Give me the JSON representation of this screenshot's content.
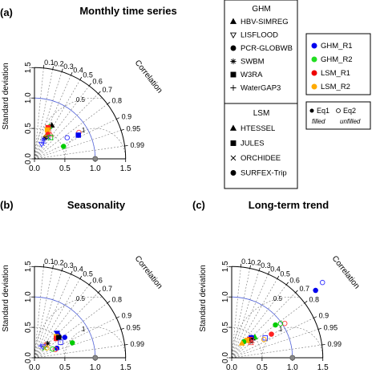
{
  "panels": [
    {
      "label": "(a)",
      "title": "Monthly time series",
      "ylabel": "Standard deviation",
      "corr_label": "Correlation",
      "chart_data": {
        "type": "scatter",
        "subtype": "taylor_diagram",
        "sd_range": [
          0,
          1.5
        ],
        "sd_ticks": [
          "0.0",
          "0.5",
          "1.0",
          "1.5"
        ],
        "corr_ticks": [
          "0.1",
          "0.2",
          "0.3",
          "0.4",
          "0.5",
          "0.6",
          "0.7",
          "0.8",
          "0.9",
          "0.95",
          "0.99"
        ],
        "rms_labels": [
          "1",
          "0.5"
        ],
        "reference_sd": 1.0,
        "points": [
          {
            "r": 0.86,
            "sd": 0.85,
            "color": "#ff4444",
            "shape": "circle",
            "filled": false
          },
          {
            "r": 0.84,
            "sd": 0.64,
            "color": "#3333ff",
            "shape": "circle",
            "filled": false
          },
          {
            "r": 0.88,
            "sd": 0.82,
            "color": "#0000ee",
            "shape": "square",
            "filled": true
          },
          {
            "r": 0.92,
            "sd": 0.52,
            "color": "#00cc00",
            "shape": "circle",
            "filled": true
          },
          {
            "r": 0.46,
            "sd": 0.62,
            "color": "#000000",
            "shape": "triangle",
            "filled": true
          },
          {
            "r": 0.42,
            "sd": 0.58,
            "color": "#00cc00",
            "shape": "triangle",
            "filled": true
          },
          {
            "r": 0.4,
            "sd": 0.56,
            "color": "#ff2222",
            "shape": "square",
            "filled": true
          },
          {
            "r": 0.41,
            "sd": 0.52,
            "color": "#ffaa00",
            "shape": "square",
            "filled": true
          },
          {
            "r": 0.48,
            "sd": 0.46,
            "color": "#ff2222",
            "shape": "circle",
            "filled": true
          },
          {
            "r": 0.46,
            "sd": 0.4,
            "color": "#ffaa00",
            "shape": "circle",
            "filled": true
          },
          {
            "r": 0.55,
            "sd": 0.42,
            "color": "#0000ee",
            "shape": "cross",
            "filled": false
          },
          {
            "r": 0.45,
            "sd": 0.38,
            "color": "#000000",
            "shape": "star",
            "filled": false
          },
          {
            "r": 0.42,
            "sd": 0.35,
            "color": "#3333ff",
            "shape": "star",
            "filled": false
          },
          {
            "r": 0.5,
            "sd": 0.3,
            "color": "#3333ff",
            "shape": "plus",
            "filled": false
          },
          {
            "r": 0.43,
            "sd": 0.27,
            "color": "#3333ff",
            "shape": "triangle-down",
            "filled": false
          },
          {
            "r": 0.56,
            "sd": 0.48,
            "color": "#ff4444",
            "shape": "triangle",
            "filled": false
          },
          {
            "r": 0.6,
            "sd": 0.44,
            "color": "#00cc00",
            "shape": "square",
            "filled": false
          }
        ]
      }
    },
    {
      "label": "(b)",
      "title": "Seasonality",
      "ylabel": "Standard deviation",
      "corr_label": "Correlation",
      "chart_data": {
        "type": "scatter",
        "subtype": "taylor_diagram",
        "sd_range": [
          0,
          1.5
        ],
        "sd_ticks": [
          "0.0",
          "0.5",
          "1.0",
          "1.5"
        ],
        "corr_ticks": [
          "0.1",
          "0.2",
          "0.3",
          "0.4",
          "0.5",
          "0.6",
          "0.7",
          "0.8",
          "0.9",
          "0.95",
          "0.99"
        ],
        "rms_labels": [
          "1",
          "0.5"
        ],
        "reference_sd": 1.0,
        "points": [
          {
            "r": 0.93,
            "sd": 0.67,
            "color": "#00cc00",
            "shape": "circle",
            "filled": true
          },
          {
            "r": 0.83,
            "sd": 0.6,
            "color": "#0000ee",
            "shape": "circle",
            "filled": true
          },
          {
            "r": 0.74,
            "sd": 0.55,
            "color": "#0000ee",
            "shape": "triangle",
            "filled": true
          },
          {
            "r": 0.67,
            "sd": 0.55,
            "color": "#0000ee",
            "shape": "triangle-down",
            "filled": true
          },
          {
            "r": 0.72,
            "sd": 0.5,
            "color": "#ffaa00",
            "shape": "square",
            "filled": true
          },
          {
            "r": 0.75,
            "sd": 0.48,
            "color": "#ff2222",
            "shape": "square",
            "filled": true
          },
          {
            "r": 0.77,
            "sd": 0.52,
            "color": "#000000",
            "shape": "square",
            "filled": true
          },
          {
            "r": 0.86,
            "sd": 0.5,
            "color": "#3333ff",
            "shape": "square",
            "filled": false
          },
          {
            "r": 0.92,
            "sd": 0.4,
            "color": "#0000ee",
            "shape": "circle",
            "filled": true
          },
          {
            "r": 0.93,
            "sd": 0.37,
            "color": "#ff4444",
            "shape": "circle",
            "filled": false
          },
          {
            "r": 0.9,
            "sd": 0.33,
            "color": "#00cc00",
            "shape": "circle",
            "filled": false
          },
          {
            "r": 0.68,
            "sd": 0.32,
            "color": "#000000",
            "shape": "star",
            "filled": false
          },
          {
            "r": 0.64,
            "sd": 0.27,
            "color": "#ff4444",
            "shape": "triangle",
            "filled": false
          },
          {
            "r": 0.6,
            "sd": 0.23,
            "color": "#3333ff",
            "shape": "triangle-down",
            "filled": false
          },
          {
            "r": 0.48,
            "sd": 0.22,
            "color": "#3333ff",
            "shape": "plus",
            "filled": false
          },
          {
            "r": 0.74,
            "sd": 0.23,
            "color": "#00cc00",
            "shape": "cross",
            "filled": false
          },
          {
            "r": 0.78,
            "sd": 0.26,
            "color": "#ffaa00",
            "shape": "circle",
            "filled": false
          }
        ]
      }
    },
    {
      "label": "(c)",
      "title": "Long-term trend",
      "ylabel": "Standard deviation",
      "corr_label": "Correlation",
      "chart_data": {
        "type": "scatter",
        "subtype": "taylor_diagram",
        "sd_range": [
          0,
          1.5
        ],
        "sd_ticks": [
          "0.0",
          "0.5",
          "1.0",
          "1.5"
        ],
        "corr_ticks": [
          "0.1",
          "0.2",
          "0.3",
          "0.4",
          "0.5",
          "0.6",
          "0.7",
          "0.8",
          "0.9",
          "0.95",
          "0.99"
        ],
        "rms_labels": [
          "1",
          "0.5"
        ],
        "reference_sd": 1.0,
        "points": [
          {
            "r": 0.77,
            "sd": 1.94,
            "color": "#3333ff",
            "shape": "circle",
            "filled": false
          },
          {
            "r": 0.78,
            "sd": 1.77,
            "color": "#0000ee",
            "shape": "circle",
            "filled": true
          },
          {
            "r": 0.84,
            "sd": 1.04,
            "color": "#ff4444",
            "shape": "circle",
            "filled": false
          },
          {
            "r": 0.82,
            "sd": 0.98,
            "color": "#00cc00",
            "shape": "circle",
            "filled": false
          },
          {
            "r": 0.8,
            "sd": 0.9,
            "color": "#00cc00",
            "shape": "circle",
            "filled": true
          },
          {
            "r": 0.86,
            "sd": 0.76,
            "color": "#ff2222",
            "shape": "circle",
            "filled": true
          },
          {
            "r": 0.86,
            "sd": 0.64,
            "color": "#3333ff",
            "shape": "square",
            "filled": false
          },
          {
            "r": 0.87,
            "sd": 0.61,
            "color": "#ffaa00",
            "shape": "circle",
            "filled": false
          },
          {
            "r": 0.73,
            "sd": 0.47,
            "color": "#000000",
            "shape": "triangle",
            "filled": true
          },
          {
            "r": 0.75,
            "sd": 0.51,
            "color": "#00cc00",
            "shape": "triangle",
            "filled": true
          },
          {
            "r": 0.7,
            "sd": 0.46,
            "color": "#0000ee",
            "shape": "square",
            "filled": true
          },
          {
            "r": 0.7,
            "sd": 0.43,
            "color": "#ff2222",
            "shape": "triangle-down",
            "filled": true
          },
          {
            "r": 0.72,
            "sd": 0.42,
            "color": "#ff2222",
            "shape": "square",
            "filled": true
          },
          {
            "r": 0.74,
            "sd": 0.42,
            "color": "#000000",
            "shape": "square",
            "filled": true
          },
          {
            "r": 0.77,
            "sd": 0.44,
            "color": "#ff4444",
            "shape": "cross",
            "filled": false
          },
          {
            "r": 0.79,
            "sd": 0.4,
            "color": "#ff4444",
            "shape": "triangle",
            "filled": false
          },
          {
            "r": 0.66,
            "sd": 0.38,
            "color": "#ffaa00",
            "shape": "square",
            "filled": true
          },
          {
            "r": 0.6,
            "sd": 0.33,
            "color": "#00cc00",
            "shape": "circle",
            "filled": true
          },
          {
            "r": 0.58,
            "sd": 0.29,
            "color": "#ffaa00",
            "shape": "triangle",
            "filled": true
          }
        ]
      }
    }
  ],
  "legend": {
    "ghm_title": "GHM",
    "ghm_models": [
      {
        "label": "HBV-SIMREG",
        "shape": "triangle"
      },
      {
        "label": "LISFLOOD",
        "shape": "triangle-down-open"
      },
      {
        "label": "PCR-GLOBWB",
        "shape": "circle"
      },
      {
        "label": "SWBM",
        "shape": "star"
      },
      {
        "label": "W3RA",
        "shape": "square"
      },
      {
        "label": "WaterGAP3",
        "shape": "plus"
      }
    ],
    "lsm_title": "LSM",
    "lsm_models": [
      {
        "label": "HTESSEL",
        "shape": "triangle"
      },
      {
        "label": "JULES",
        "shape": "square"
      },
      {
        "label": "ORCHIDEE",
        "shape": "cross"
      },
      {
        "label": "SURFEX-Trip",
        "shape": "circle"
      }
    ],
    "groups": [
      {
        "label": "GHM_R1",
        "color": "#0000ee"
      },
      {
        "label": "GHM_R2",
        "color": "#22dd22"
      },
      {
        "label": "LSM_R1",
        "color": "#ee0000"
      },
      {
        "label": "LSM_R2",
        "color": "#ffaa00"
      }
    ],
    "eq1_label": "Eq1",
    "eq1_sub": "filled",
    "eq2_label": "Eq2",
    "eq2_sub": "unfilled"
  }
}
